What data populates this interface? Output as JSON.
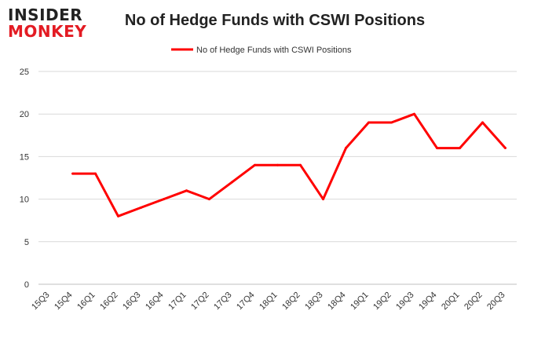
{
  "logo": {
    "line1": "INSIDER",
    "line2": "MONKEY"
  },
  "chart_data": {
    "type": "line",
    "title": "No of Hedge Funds with CSWI Positions",
    "xlabel": "",
    "ylabel": "",
    "categories": [
      "15Q3",
      "15Q4",
      "16Q1",
      "16Q2",
      "16Q3",
      "16Q4",
      "17Q1",
      "17Q2",
      "17Q3",
      "17Q4",
      "18Q1",
      "18Q2",
      "18Q3",
      "18Q4",
      "19Q1",
      "19Q2",
      "19Q3",
      "19Q4",
      "20Q1",
      "20Q2",
      "20Q3"
    ],
    "series": [
      {
        "name": "No of Hedge Funds with CSWI Positions",
        "color": "#ff0000",
        "values": [
          null,
          13,
          13,
          8,
          9,
          10,
          11,
          10,
          12,
          14,
          14,
          14,
          10,
          16,
          19,
          19,
          20,
          16,
          16,
          19,
          16
        ]
      }
    ],
    "ylim": [
      0,
      25
    ],
    "yticks": [
      0,
      5,
      10,
      15,
      20,
      25
    ],
    "grid": true,
    "legend": "top-center"
  }
}
